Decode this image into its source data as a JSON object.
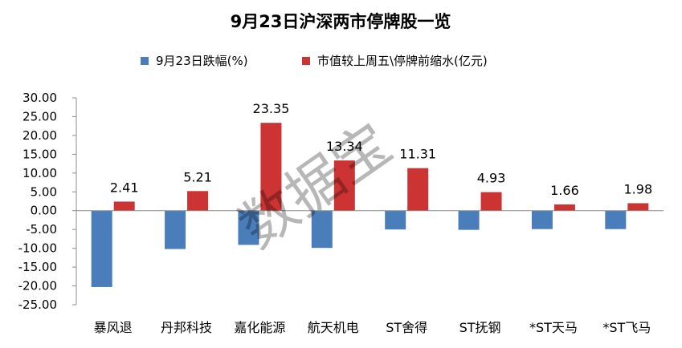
{
  "chart_data": {
    "type": "bar",
    "title": "9月23日沪深两市停牌股一览",
    "categories": [
      "暴风退",
      "丹邦科技",
      "嘉化能源",
      "航天机电",
      "ST舍得",
      "ST抚钢",
      "*ST天马",
      "*ST飞马"
    ],
    "series": [
      {
        "name": "9月23日跌幅(%)",
        "color": "#4a7ebb",
        "values": [
          -20.3,
          -10.2,
          -9.1,
          -9.9,
          -5.0,
          -5.1,
          -4.9,
          -4.9
        ],
        "show_labels": false
      },
      {
        "name": "市值较上周五\\停牌前缩水(亿元)",
        "color": "#cc3333",
        "values": [
          2.41,
          5.21,
          23.35,
          13.34,
          11.31,
          4.93,
          1.66,
          1.98
        ],
        "show_labels": true
      }
    ],
    "data_labels": [
      "2.41",
      "5.21",
      "23.35",
      "13.34",
      "11.31",
      "4.93",
      "1.66",
      "1.98"
    ],
    "ylim": [
      -25,
      30
    ],
    "yticks": [
      "30.00",
      "25.00",
      "20.00",
      "15.00",
      "10.00",
      "5.00",
      "0.00",
      "-5.00",
      "-10.00",
      "-15.00",
      "-20.00",
      "-25.00"
    ],
    "grid": false,
    "legend_position": "top"
  },
  "watermark": "数据宝"
}
